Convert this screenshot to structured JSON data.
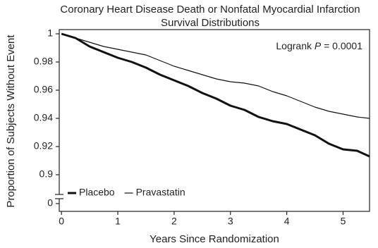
{
  "chart_data": {
    "type": "line",
    "title": [
      "Coronary Heart Disease Death or Nonfatal Myocardial Infarction",
      "Survival Distributions"
    ],
    "x_label": "Years Since Randomization",
    "y_label": "Proportion of Subjects Without Event",
    "annotation": {
      "text_before": "Logrank",
      "italic": "P",
      "text_after": "= 0.0001"
    },
    "x": [
      0,
      0.25,
      0.5,
      0.75,
      1,
      1.25,
      1.5,
      1.75,
      2,
      2.25,
      2.5,
      2.75,
      3,
      3.25,
      3.5,
      3.75,
      4,
      4.25,
      4.5,
      4.75,
      5,
      5.25,
      5.47
    ],
    "series": [
      {
        "name": "Placebo",
        "color": "#111111",
        "line_width": 3,
        "values": [
          1.0,
          0.997,
          0.991,
          0.987,
          0.983,
          0.98,
          0.976,
          0.971,
          0.967,
          0.963,
          0.958,
          0.954,
          0.949,
          0.946,
          0.941,
          0.938,
          0.936,
          0.932,
          0.928,
          0.922,
          0.918,
          0.917,
          0.913
        ]
      },
      {
        "name": "Pravastatin",
        "color": "#111111",
        "line_width": 1.2,
        "values": [
          1.0,
          0.997,
          0.994,
          0.991,
          0.989,
          0.987,
          0.985,
          0.981,
          0.977,
          0.974,
          0.971,
          0.968,
          0.966,
          0.965,
          0.963,
          0.959,
          0.956,
          0.952,
          0.948,
          0.945,
          0.943,
          0.941,
          0.94
        ]
      }
    ],
    "xlim": [
      -0.04,
      5.47
    ],
    "xticks": [
      0,
      1,
      2,
      3,
      4,
      5
    ],
    "ylim": [
      0.874,
      1.003
    ],
    "yticks": [
      0,
      0.9,
      0.92,
      0.94,
      0.96,
      0.98,
      1
    ],
    "axis_break": true,
    "legend": "lower left",
    "grid": false
  }
}
